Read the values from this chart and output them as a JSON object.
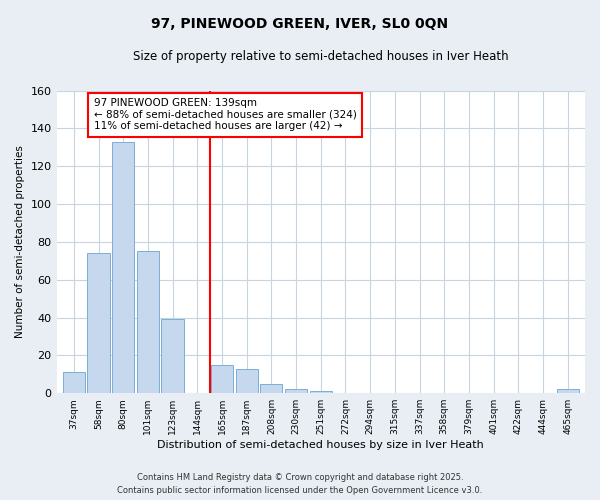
{
  "title": "97, PINEWOOD GREEN, IVER, SL0 0QN",
  "subtitle": "Size of property relative to semi-detached houses in Iver Heath",
  "xlabel": "Distribution of semi-detached houses by size in Iver Heath",
  "ylabel": "Number of semi-detached properties",
  "bin_labels": [
    "37sqm",
    "58sqm",
    "80sqm",
    "101sqm",
    "123sqm",
    "144sqm",
    "165sqm",
    "187sqm",
    "208sqm",
    "230sqm",
    "251sqm",
    "272sqm",
    "294sqm",
    "315sqm",
    "337sqm",
    "358sqm",
    "379sqm",
    "401sqm",
    "422sqm",
    "444sqm",
    "465sqm"
  ],
  "bar_values": [
    11,
    74,
    133,
    75,
    39,
    0,
    15,
    13,
    5,
    2,
    1,
    0,
    0,
    0,
    0,
    0,
    0,
    0,
    0,
    0,
    2
  ],
  "bar_color": "#c5d8ee",
  "bar_edge_color": "#7aafd4",
  "vline_x": 5.5,
  "vline_color": "red",
  "annotation_line1": "97 PINEWOOD GREEN: 139sqm",
  "annotation_line2": "← 88% of semi-detached houses are smaller (324)",
  "annotation_line3": "11% of semi-detached houses are larger (42) →",
  "annotation_box_color": "white",
  "annotation_box_edge_color": "red",
  "ylim": [
    0,
    160
  ],
  "yticks": [
    0,
    20,
    40,
    60,
    80,
    100,
    120,
    140,
    160
  ],
  "footer_line1": "Contains HM Land Registry data © Crown copyright and database right 2025.",
  "footer_line2": "Contains public sector information licensed under the Open Government Licence v3.0.",
  "background_color": "#e8eef4",
  "plot_bg_color": "white",
  "grid_color": "#c8d4de"
}
